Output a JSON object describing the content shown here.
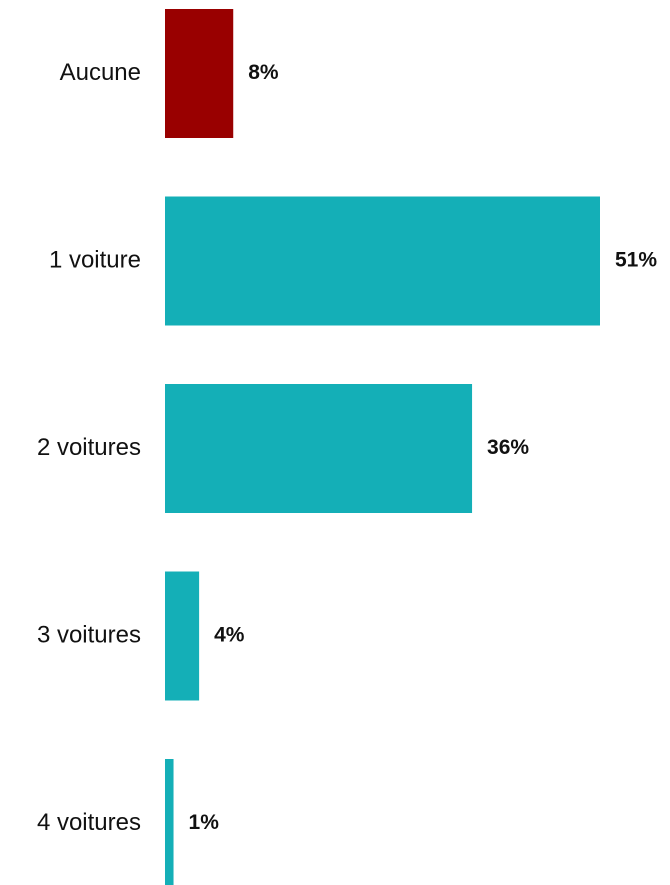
{
  "chart_data": {
    "type": "bar",
    "orientation": "horizontal",
    "categories": [
      "Aucune",
      "1 voiture",
      "2 voitures",
      "3 voitures",
      "4 voitures"
    ],
    "values": [
      8,
      51,
      36,
      4,
      1
    ],
    "value_labels": [
      "8%",
      "51%",
      "36%",
      "4%",
      "1%"
    ],
    "unit": "%",
    "colors": [
      "#990000",
      "#14AFB7",
      "#14AFB7",
      "#14AFB7",
      "#14AFB7"
    ],
    "xlim": [
      0,
      51
    ],
    "title": "",
    "xlabel": "",
    "ylabel": "",
    "grid": false,
    "legend": "none"
  }
}
